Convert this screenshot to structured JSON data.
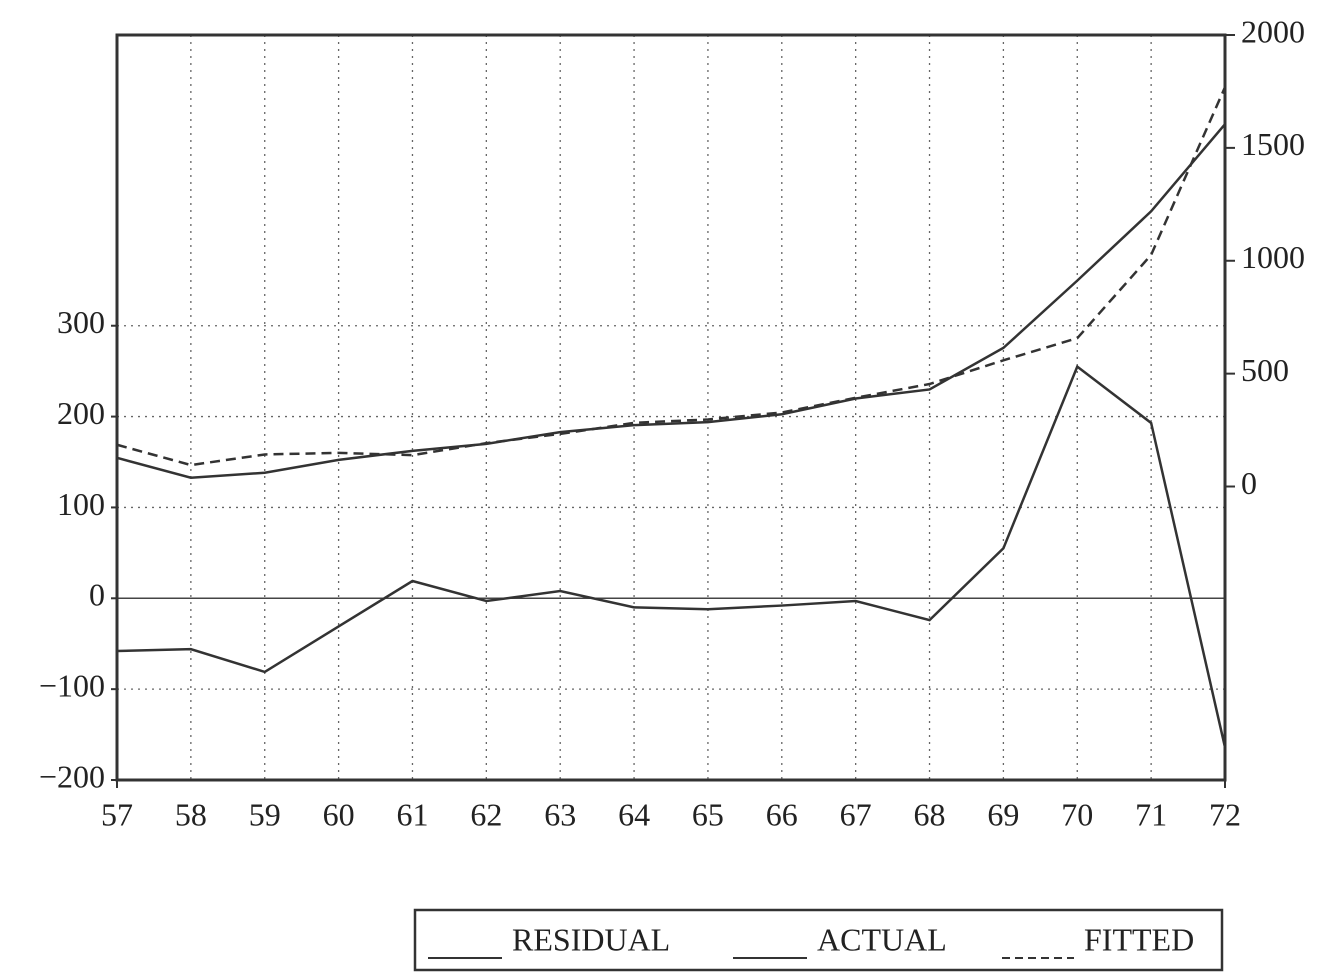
{
  "chart_data": {
    "type": "line",
    "x": [
      57,
      58,
      59,
      60,
      61,
      62,
      63,
      64,
      65,
      66,
      67,
      68,
      69,
      70,
      71,
      72
    ],
    "xlim": [
      57,
      72
    ],
    "xticks": [
      57,
      58,
      59,
      60,
      61,
      62,
      63,
      64,
      65,
      66,
      67,
      68,
      69,
      70,
      71,
      72
    ],
    "ylim": [
      -200,
      620
    ],
    "yticks": [
      {
        "value": -200,
        "label": "−200"
      },
      {
        "value": -100,
        "label": "−100"
      },
      0,
      100,
      200,
      300
    ],
    "y2lim": [
      -1300,
      2000
    ],
    "y2ticks": [
      0,
      500,
      1000,
      1500,
      2000
    ],
    "grid": true,
    "legend": "bottom",
    "series": [
      {
        "name": "RESIDUAL",
        "color": "#333333",
        "line_style": "solid",
        "values": [
          -58,
          -56,
          -81,
          -31,
          19,
          -3,
          8,
          -10,
          -12,
          -8,
          -3,
          -24,
          55,
          255,
          193,
          -164
        ]
      },
      {
        "name": "ACTUAL",
        "color": "#333333",
        "line_style": "solid",
        "axis": "y2",
        "values": [
          127,
          39,
          61,
          118,
          158,
          189,
          241,
          272,
          285,
          320,
          390,
          430,
          614,
          912,
          1219,
          1605
        ]
      },
      {
        "name": "FITTED",
        "color": "#333333",
        "line_style": "dashed",
        "axis": "y2",
        "values": [
          185,
          95,
          142,
          149,
          139,
          192,
          233,
          282,
          297,
          328,
          393,
          454,
          559,
          657,
          1026,
          1769
        ]
      }
    ]
  }
}
